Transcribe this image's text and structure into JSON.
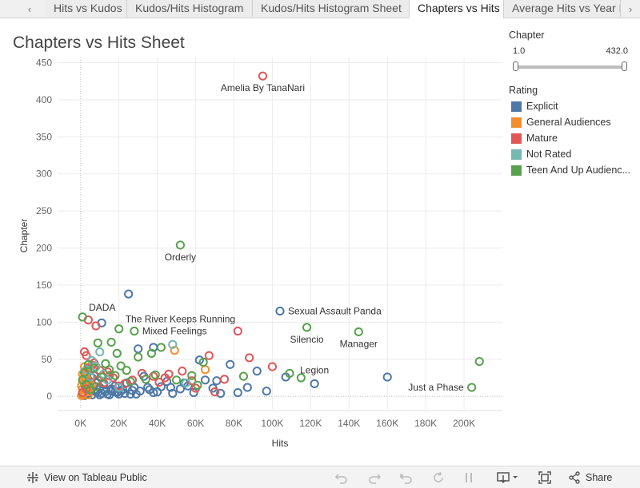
{
  "tabs": [
    {
      "label": "‹",
      "nav": true
    },
    {
      "label": "Hits vs Kudos"
    },
    {
      "label": "Kudos/Hits Histogram"
    },
    {
      "label": "Kudos/Hits Histogram Sheet"
    },
    {
      "label": "Chapters vs Hits",
      "active": true
    },
    {
      "label": "Average Hits vs Year P"
    }
  ],
  "tab_next": "›",
  "page_title": "Chapters vs Hits Sheet",
  "filter": {
    "title": "Chapter",
    "min_label": "1.0",
    "max_label": "432.0"
  },
  "legend": {
    "title": "Rating",
    "items": [
      {
        "label": "Explicit",
        "color": "#4e79a7"
      },
      {
        "label": "General Audiences",
        "color": "#f28e2b"
      },
      {
        "label": "Mature",
        "color": "#e15759"
      },
      {
        "label": "Not Rated",
        "color": "#76b7b2"
      },
      {
        "label": "Teen And Up Audienc...",
        "color": "#59a14f"
      }
    ]
  },
  "toolbar": {
    "view_on": "View on Tableau Public",
    "share": "Share",
    "undo_icon": "undo-icon",
    "redo_icon": "redo-icon",
    "revert_icon": "revert-icon",
    "refresh_icon": "refresh-icon",
    "pause_icon": "pause-icon",
    "download_icon": "download-icon",
    "fullscreen_icon": "fullscreen-icon",
    "share_icon": "share-icon",
    "tableau_icon": "tableau-logo-icon"
  },
  "chart_data": {
    "type": "scatter",
    "xlabel": "Hits",
    "ylabel": "Chapter",
    "xlim": [
      -12000,
      220000
    ],
    "ylim": [
      -17,
      457
    ],
    "xticks": [
      0,
      20000,
      40000,
      60000,
      80000,
      100000,
      120000,
      140000,
      160000,
      180000,
      200000
    ],
    "xtick_labels": [
      "0K",
      "20K",
      "40K",
      "60K",
      "80K",
      "100K",
      "120K",
      "140K",
      "160K",
      "180K",
      "200K"
    ],
    "yticks": [
      0,
      50,
      100,
      150,
      200,
      250,
      300,
      350,
      400,
      450
    ],
    "ytick_labels": [
      "0",
      "50",
      "100",
      "150",
      "200",
      "250",
      "300",
      "350",
      "400",
      "450"
    ],
    "grid": true,
    "series": [
      {
        "name": "Explicit",
        "color": "#4e79a7",
        "points": [
          [
            25000,
            138
          ],
          [
            104000,
            115
          ],
          [
            11000,
            99
          ],
          [
            160000,
            26
          ],
          [
            122000,
            17
          ],
          [
            107000,
            26
          ],
          [
            97000,
            7
          ],
          [
            92000,
            34
          ],
          [
            82000,
            5
          ],
          [
            78000,
            43
          ],
          [
            71000,
            21
          ],
          [
            69000,
            11
          ],
          [
            62000,
            49
          ],
          [
            59000,
            5
          ],
          [
            56000,
            14
          ],
          [
            52000,
            10
          ],
          [
            48000,
            4
          ],
          [
            45000,
            20
          ],
          [
            42000,
            13
          ],
          [
            38000,
            66
          ],
          [
            38000,
            5
          ],
          [
            35000,
            12
          ],
          [
            33000,
            27
          ],
          [
            31000,
            7
          ],
          [
            30000,
            64
          ],
          [
            28000,
            12
          ],
          [
            26000,
            3
          ],
          [
            24000,
            18
          ],
          [
            22000,
            9
          ],
          [
            20000,
            3
          ],
          [
            18000,
            14
          ],
          [
            16000,
            7
          ],
          [
            14000,
            3
          ],
          [
            12000,
            9
          ],
          [
            10000,
            2
          ],
          [
            8000,
            6
          ],
          [
            6000,
            2
          ],
          [
            4000,
            4
          ],
          [
            2000,
            1
          ],
          [
            1000,
            3
          ],
          [
            3000,
            7
          ],
          [
            5000,
            12
          ],
          [
            7000,
            8
          ],
          [
            9000,
            5
          ],
          [
            11000,
            4
          ],
          [
            13000,
            6
          ],
          [
            15000,
            2
          ],
          [
            17000,
            9
          ],
          [
            19000,
            5
          ],
          [
            21000,
            7
          ],
          [
            23000,
            4
          ],
          [
            27000,
            8
          ],
          [
            29000,
            3
          ],
          [
            36000,
            9
          ],
          [
            40000,
            6
          ],
          [
            47000,
            12
          ],
          [
            54000,
            18
          ],
          [
            65000,
            22
          ],
          [
            73000,
            4
          ],
          [
            87000,
            12
          ],
          [
            2000,
            15
          ],
          [
            4000,
            20
          ],
          [
            6000,
            25
          ],
          [
            8000,
            18
          ],
          [
            10000,
            12
          ],
          [
            12000,
            16
          ],
          [
            14000,
            22
          ],
          [
            16000,
            10
          ],
          [
            18000,
            6
          ],
          [
            3000,
            30
          ],
          [
            5000,
            35
          ],
          [
            7000,
            28
          ]
        ]
      },
      {
        "name": "General Audiences",
        "color": "#f28e2b",
        "points": [
          [
            49000,
            62
          ],
          [
            65000,
            36
          ],
          [
            1000,
            10
          ],
          [
            2000,
            18
          ],
          [
            3000,
            25
          ],
          [
            4000,
            8
          ],
          [
            5000,
            14
          ],
          [
            1000,
            30
          ],
          [
            2000,
            5
          ],
          [
            3000,
            12
          ],
          [
            1000,
            3
          ],
          [
            2000,
            40
          ],
          [
            4000,
            2
          ],
          [
            6000,
            16
          ],
          [
            1500,
            22
          ],
          [
            2500,
            33
          ],
          [
            3500,
            6
          ],
          [
            500,
            14
          ],
          [
            500,
            1
          ],
          [
            2000,
            26
          ]
        ]
      },
      {
        "name": "Mature",
        "color": "#e15759",
        "points": [
          [
            95000,
            432
          ],
          [
            4000,
            103
          ],
          [
            8000,
            95
          ],
          [
            82000,
            88
          ],
          [
            100000,
            40
          ],
          [
            88000,
            52
          ],
          [
            75000,
            23
          ],
          [
            67000,
            55
          ],
          [
            60000,
            11
          ],
          [
            58000,
            21
          ],
          [
            46000,
            30
          ],
          [
            44000,
            25
          ],
          [
            41000,
            19
          ],
          [
            32000,
            31
          ],
          [
            27000,
            22
          ],
          [
            20000,
            14
          ],
          [
            15000,
            28
          ],
          [
            10000,
            35
          ],
          [
            6000,
            42
          ],
          [
            3000,
            55
          ],
          [
            2000,
            60
          ],
          [
            7000,
            45
          ],
          [
            12000,
            18
          ],
          [
            4000,
            38
          ],
          [
            9000,
            22
          ],
          [
            5000,
            27
          ],
          [
            14000,
            33
          ],
          [
            17000,
            25
          ],
          [
            1000,
            5
          ],
          [
            3000,
            10
          ],
          [
            70000,
            6
          ],
          [
            53000,
            34
          ],
          [
            38000,
            27
          ],
          [
            23000,
            17
          ]
        ]
      },
      {
        "name": "Not Rated",
        "color": "#76b7b2",
        "points": [
          [
            48000,
            70
          ],
          [
            10000,
            60
          ],
          [
            6000,
            48
          ],
          [
            8000,
            40
          ],
          [
            12000,
            30
          ],
          [
            14000,
            22
          ],
          [
            3000,
            36
          ],
          [
            5000,
            26
          ],
          [
            20000,
            12
          ],
          [
            55000,
            18
          ]
        ]
      },
      {
        "name": "Teen And Up Audiences",
        "color": "#59a14f",
        "points": [
          [
            52000,
            204
          ],
          [
            1000,
            107
          ],
          [
            20000,
            91
          ],
          [
            28000,
            88
          ],
          [
            118000,
            93
          ],
          [
            145000,
            87
          ],
          [
            208000,
            47
          ],
          [
            204000,
            12
          ],
          [
            115000,
            25
          ],
          [
            109000,
            31
          ],
          [
            85000,
            27
          ],
          [
            64000,
            46
          ],
          [
            42000,
            66
          ],
          [
            37000,
            58
          ],
          [
            30000,
            53
          ],
          [
            19000,
            58
          ],
          [
            16000,
            73
          ],
          [
            9000,
            72
          ],
          [
            7000,
            38
          ],
          [
            4000,
            43
          ],
          [
            2000,
            32
          ],
          [
            1000,
            22
          ],
          [
            3000,
            16
          ],
          [
            5000,
            9
          ],
          [
            8000,
            13
          ],
          [
            11000,
            26
          ],
          [
            13000,
            44
          ],
          [
            15000,
            36
          ],
          [
            18000,
            28
          ],
          [
            21000,
            41
          ],
          [
            24000,
            35
          ],
          [
            26000,
            20
          ],
          [
            34000,
            23
          ],
          [
            39000,
            29
          ],
          [
            50000,
            22
          ],
          [
            58000,
            28
          ],
          [
            61000,
            15
          ]
        ]
      }
    ],
    "annotations": [
      {
        "text": "Amelia By TanaNari",
        "x": 95000,
        "y": 432,
        "anchor": "below"
      },
      {
        "text": "Orderly",
        "x": 52000,
        "y": 204,
        "anchor": "below"
      },
      {
        "text": "DADA",
        "x": 1000,
        "y": 107,
        "anchor": "above-right"
      },
      {
        "text": "The River Keeps Running",
        "x": 20000,
        "y": 91,
        "anchor": "above-right"
      },
      {
        "text": "Mixed Feelings",
        "x": 28000,
        "y": 88,
        "anchor": "right"
      },
      {
        "text": "Sexual Assault Panda",
        "x": 104000,
        "y": 115,
        "anchor": "right"
      },
      {
        "text": "Silencio",
        "x": 118000,
        "y": 93,
        "anchor": "below"
      },
      {
        "text": "Manager",
        "x": 145000,
        "y": 87,
        "anchor": "below"
      },
      {
        "text": "Legion",
        "x": 122000,
        "y": 17,
        "anchor": "above"
      },
      {
        "text": "Just a Phase",
        "x": 204000,
        "y": 12,
        "anchor": "left"
      }
    ]
  }
}
